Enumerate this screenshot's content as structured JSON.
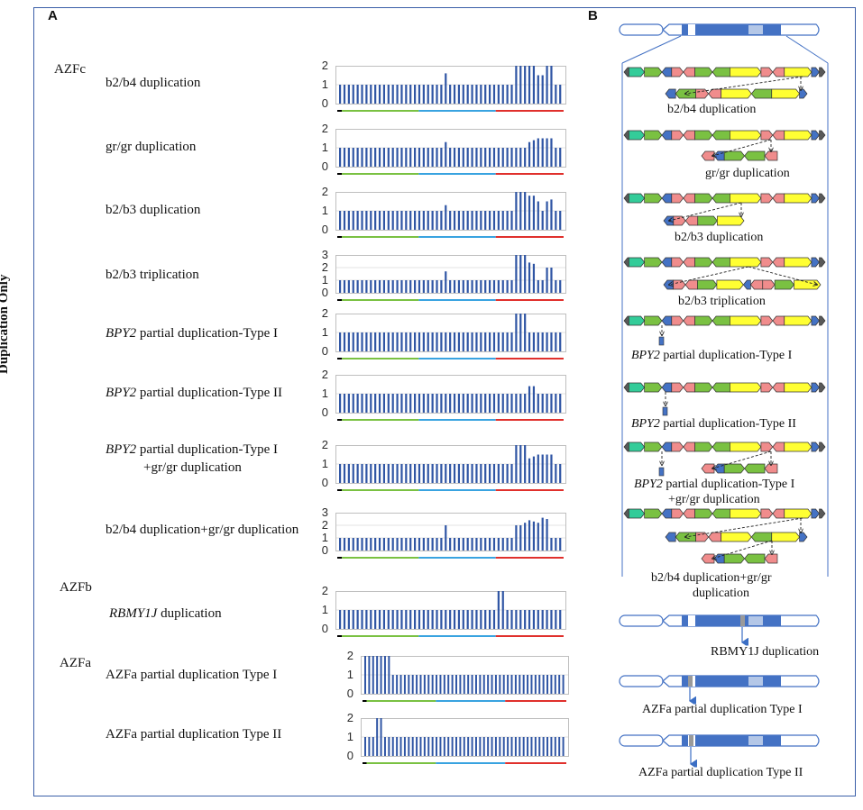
{
  "side_label": "Duplication Only",
  "panel_a": "A",
  "panel_b": "B",
  "groups": [
    {
      "key": "azfc",
      "name": "AZFc"
    },
    {
      "key": "azfb",
      "name": "AZFb"
    },
    {
      "key": "azfa",
      "name": "AZFa"
    }
  ],
  "chart_data": [
    {
      "type": "bar",
      "title": "b2/b4 duplication",
      "ylim": [
        0,
        2
      ],
      "yticks": [
        0,
        1,
        2
      ],
      "values": [
        1,
        1,
        1,
        1,
        1,
        1,
        1,
        1,
        1,
        1,
        1,
        1,
        1,
        1,
        1,
        1,
        1,
        1,
        1,
        1,
        1,
        1,
        1,
        1,
        1.6,
        1,
        1,
        1,
        1,
        1,
        1,
        1,
        1,
        1,
        1,
        1,
        1,
        1,
        1,
        1,
        2,
        2,
        2,
        2,
        2,
        1.5,
        1.5,
        2,
        2,
        1,
        1
      ]
    },
    {
      "type": "bar",
      "title": "gr/gr duplication",
      "ylim": [
        0,
        2
      ],
      "yticks": [
        0,
        1,
        2
      ],
      "values": [
        1,
        1,
        1,
        1,
        1,
        1,
        1,
        1,
        1,
        1,
        1,
        1,
        1,
        1,
        1,
        1,
        1,
        1,
        1,
        1,
        1,
        1,
        1,
        1,
        1.3,
        1,
        1,
        1,
        1,
        1,
        1,
        1,
        1,
        1,
        1,
        1,
        1,
        1,
        1,
        1,
        1,
        1,
        1,
        1.3,
        1.4,
        1.5,
        1.5,
        1.5,
        1.5,
        1,
        1
      ]
    },
    {
      "type": "bar",
      "title": "b2/b3 duplication",
      "ylim": [
        0,
        2
      ],
      "yticks": [
        0,
        1,
        2
      ],
      "values": [
        1,
        1,
        1,
        1,
        1,
        1,
        1,
        1,
        1,
        1,
        1,
        1,
        1,
        1,
        1,
        1,
        1,
        1,
        1,
        1,
        1,
        1,
        1,
        1,
        1.3,
        1,
        1,
        1,
        1,
        1,
        1,
        1,
        1,
        1,
        1,
        1,
        1,
        1,
        1,
        1,
        2,
        2,
        2,
        1.8,
        1.8,
        1.5,
        1,
        1.5,
        1.6,
        1,
        1
      ]
    },
    {
      "type": "bar",
      "title": "b2/b3 triplication",
      "ylim": [
        0,
        3
      ],
      "yticks": [
        0,
        1,
        2,
        3
      ],
      "values": [
        1,
        1,
        1,
        1,
        1,
        1,
        1,
        1,
        1,
        1,
        1,
        1,
        1,
        1,
        1,
        1,
        1,
        1,
        1,
        1,
        1,
        1,
        1,
        1,
        1.7,
        1,
        1,
        1,
        1,
        1,
        1,
        1,
        1,
        1,
        1,
        1,
        1,
        1,
        1,
        1,
        3,
        3,
        3,
        2.4,
        2.3,
        1,
        1,
        2,
        2,
        1,
        1
      ]
    },
    {
      "type": "bar",
      "title": "BPY2 partial duplication-Type I",
      "ylim": [
        0,
        2
      ],
      "yticks": [
        0,
        1,
        2
      ],
      "values": [
        1,
        1,
        1,
        1,
        1,
        1,
        1,
        1,
        1,
        1,
        1,
        1,
        1,
        1,
        1,
        1,
        1,
        1,
        1,
        1,
        1,
        1,
        1,
        1,
        1,
        1,
        1,
        1,
        1,
        1,
        1,
        1,
        1,
        1,
        1,
        1,
        1,
        1,
        1,
        1,
        2,
        2,
        2,
        1,
        1,
        1,
        1,
        1,
        1,
        1,
        1
      ]
    },
    {
      "type": "bar",
      "title": "BPY2 partial duplication-Type II",
      "ylim": [
        0,
        2
      ],
      "yticks": [
        0,
        1,
        2
      ],
      "values": [
        1,
        1,
        1,
        1,
        1,
        1,
        1,
        1,
        1,
        1,
        1,
        1,
        1,
        1,
        1,
        1,
        1,
        1,
        1,
        1,
        1,
        1,
        1,
        1,
        1,
        1,
        1,
        1,
        1,
        1,
        1,
        1,
        1,
        1,
        1,
        1,
        1,
        1,
        1,
        1,
        1,
        1,
        1,
        1.4,
        1.4,
        1,
        1,
        1,
        1,
        1,
        1
      ]
    },
    {
      "type": "bar",
      "title": "BPY2 partial duplication-Type I +gr/gr duplication",
      "ylim": [
        0,
        2
      ],
      "yticks": [
        0,
        1,
        2
      ],
      "values": [
        1,
        1,
        1,
        1,
        1,
        1,
        1,
        1,
        1,
        1,
        1,
        1,
        1,
        1,
        1,
        1,
        1,
        1,
        1,
        1,
        1,
        1,
        1,
        1,
        1,
        1,
        1,
        1,
        1,
        1,
        1,
        1,
        1,
        1,
        1,
        1,
        1,
        1,
        1,
        1,
        2,
        2,
        2,
        1.3,
        1.4,
        1.5,
        1.5,
        1.5,
        1.5,
        1,
        1
      ]
    },
    {
      "type": "bar",
      "title": "b2/b4 duplication+gr/gr duplication",
      "ylim": [
        0,
        3
      ],
      "yticks": [
        0,
        1,
        2,
        3
      ],
      "values": [
        1,
        1,
        1,
        1,
        1,
        1,
        1,
        1,
        1,
        1,
        1,
        1,
        1,
        1,
        1,
        1,
        1,
        1,
        1,
        1,
        1,
        1,
        1,
        1,
        2,
        1,
        1,
        1,
        1,
        1,
        1,
        1,
        1,
        1,
        1,
        1,
        1,
        1,
        1,
        1,
        2,
        2,
        2.2,
        2.4,
        2.3,
        2.2,
        2.6,
        2.5,
        1,
        1,
        1
      ]
    },
    {
      "type": "bar",
      "title": "RBMY1J duplication",
      "ylim": [
        0,
        2
      ],
      "yticks": [
        0,
        1,
        2
      ],
      "values": [
        1,
        1,
        1,
        1,
        1,
        1,
        1,
        1,
        1,
        1,
        1,
        1,
        1,
        1,
        1,
        1,
        1,
        1,
        1,
        1,
        1,
        1,
        1,
        1,
        1,
        1,
        1,
        1,
        1,
        1,
        1,
        1,
        1,
        1,
        1,
        1,
        2,
        2,
        1,
        1,
        1,
        1,
        1,
        1,
        1,
        1,
        1,
        1,
        1,
        1,
        1
      ]
    },
    {
      "type": "bar",
      "title": "AZFa partial duplication Type I",
      "ylim": [
        0,
        2
      ],
      "yticks": [
        0,
        1,
        2
      ],
      "values": [
        2,
        2,
        2,
        2,
        2,
        2,
        2,
        1,
        1,
        1,
        1,
        1,
        1,
        1,
        1,
        1,
        1,
        1,
        1,
        1,
        1,
        1,
        1,
        1,
        1,
        1,
        1,
        1,
        1,
        1,
        1,
        1,
        1,
        1,
        1,
        1,
        1,
        1,
        1,
        1,
        1,
        1,
        1,
        1,
        1,
        1,
        1,
        1,
        1,
        1,
        1
      ]
    },
    {
      "type": "bar",
      "title": "AZFa partial duplication Type II",
      "ylim": [
        0,
        2
      ],
      "yticks": [
        0,
        1,
        2
      ],
      "values": [
        1,
        1,
        1,
        2,
        2,
        1,
        1,
        1,
        1,
        1,
        1,
        1,
        1,
        1,
        1,
        1,
        1,
        1,
        1,
        1,
        1,
        1,
        1,
        1,
        1,
        1,
        1,
        1,
        1,
        1,
        1,
        1,
        1,
        1,
        1,
        1,
        1,
        1,
        1,
        1,
        1,
        1,
        1,
        1,
        1,
        1,
        1,
        1,
        1,
        1,
        1
      ]
    }
  ],
  "rows": [
    {
      "label_plain": "b2/b4 duplication"
    },
    {
      "label_plain": "gr/gr duplication"
    },
    {
      "label_plain": "b2/b3 duplication"
    },
    {
      "label_plain": "b2/b3 triplication"
    },
    {
      "label_italic": "BPY2",
      "label_rest": " partial duplication-Type I"
    },
    {
      "label_italic": "BPY2",
      "label_rest": " partial duplication-Type II"
    },
    {
      "label_italic": "BPY2",
      "label_rest": " partial duplication-Type I",
      "label_line2": "+gr/gr duplication"
    },
    {
      "label_plain": "b2/b4 duplication+gr/gr duplication"
    },
    {
      "label_italic": "RBMY1J",
      "label_rest": " duplication"
    },
    {
      "label_plain": "AZFa  partial duplication Type I"
    },
    {
      "label_plain": "AZFa  partial duplication Type II"
    }
  ],
  "right_labels": [
    {
      "line1": "b2/b4 duplication"
    },
    {
      "line1": "gr/gr duplication"
    },
    {
      "line1": "b2/b3 duplication"
    },
    {
      "line1": "b2/b3 triplication"
    },
    {
      "italic": "BPY2",
      "rest": " partial duplication-Type I"
    },
    {
      "italic": "BPY2",
      "rest": " partial duplication-Type II"
    },
    {
      "italic": "BPY2",
      "rest": " partial duplication-Type I",
      "line2": "+gr/gr duplication"
    },
    {
      "line1": "b2/b4 duplication+gr/gr",
      "line2": "duplication"
    },
    {
      "line1": "RBMY1J duplication"
    },
    {
      "line1": "AZFa  partial duplication Type I"
    },
    {
      "line1": "AZFa  partial duplication Type II"
    }
  ],
  "colors": {
    "bar": "#2f55a4",
    "green": "#7ac142",
    "blue": "#39a3e0",
    "red": "#e0302c",
    "yellow": "#ffff33",
    "pink": "#f08c8c",
    "teal": "#33cc99",
    "chromo": "#4472c4",
    "chromo_light": "#b4c7e7",
    "dark": "#595959"
  }
}
